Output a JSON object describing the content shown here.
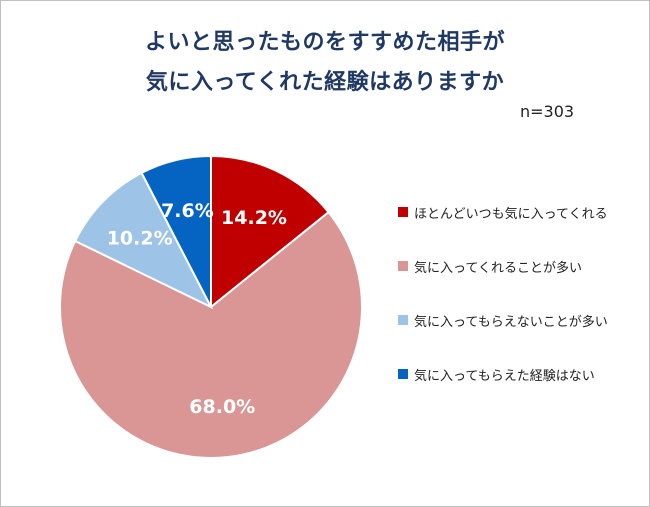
{
  "title_line1": "よいと思ったものをすすめた相手が",
  "title_line2": "気に入ってくれた経験はありますか",
  "sample_size": "n=303",
  "chart_data": {
    "type": "pie",
    "title": "よいと思ったものをすすめた相手が気に入ってくれた経験はありますか",
    "slices": [
      {
        "label": "ほとんどいつも気に入ってくれる",
        "value": 14.2,
        "display": "14.2%",
        "color": "#c00000"
      },
      {
        "label": "気に入ってくれることが多い",
        "value": 68.0,
        "display": "68.0%",
        "color": "#da9694"
      },
      {
        "label": "気に入ってもらえないことが多い",
        "value": 10.2,
        "display": "10.2%",
        "color": "#9dc3e6"
      },
      {
        "label": "気に入ってもらえた経験はない",
        "value": 7.6,
        "display": "7.6%",
        "color": "#0563c1"
      }
    ],
    "legend_position": "right"
  }
}
